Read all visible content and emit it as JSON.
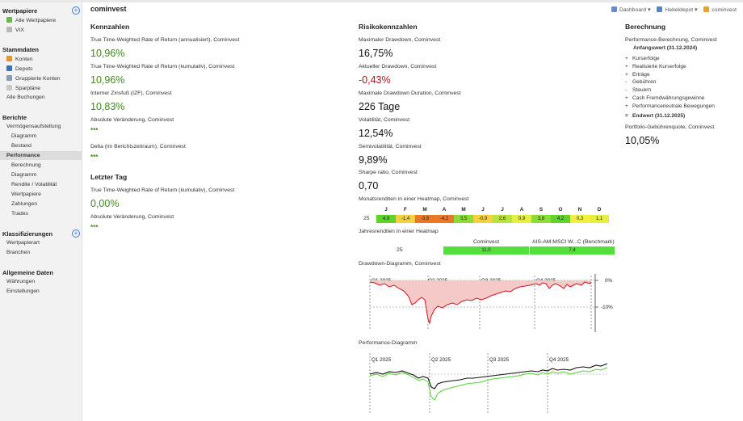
{
  "sidebar": {
    "sections": [
      {
        "title": "Wertpapiere",
        "items": [
          "Alle Wertpapiere",
          "VIX"
        ]
      },
      {
        "title": "Stammdaten",
        "items": [
          "Konten",
          "Depots",
          "Gruppierte Konten",
          "Sparpläne",
          "Alle Buchungen"
        ]
      },
      {
        "title": "Berichte",
        "items": [
          "Vermögensaufstellung",
          "Diagramm",
          "Bestand",
          "Performance",
          "Berechnung",
          "Diagramm",
          "Rendite / Volatilität",
          "Wertpapiere",
          "Zahlungen",
          "Trades"
        ]
      },
      {
        "title": "Klassifizierungen",
        "items": [
          "Wertpapierart",
          "Branchen"
        ]
      },
      {
        "title": "Allgemeine Daten",
        "items": [
          "Währungen",
          "Einstellungen"
        ]
      }
    ],
    "active_item": "Performance"
  },
  "header": {
    "title": "cominvest",
    "crumbs": [
      "Dashboard",
      "Hebeldepot",
      "cominvest"
    ]
  },
  "kennzahlen": {
    "title": "Kennzahlen",
    "items": [
      {
        "label": "True Time-Weighted Rate of Return (annualisiert), Cominvest",
        "value": "10,96%"
      },
      {
        "label": "True Time-Weighted Rate of Return (kumulativ), Cominvest",
        "value": "10,96%"
      },
      {
        "label": "Interner Zinsfuß (IZF), Cominvest",
        "value": "10,83%"
      },
      {
        "label": "Absolute Veränderung, Cominvest",
        "value": "***"
      },
      {
        "label": "Delta (im Berichtszeitraum), Cominvest",
        "value": "***"
      }
    ]
  },
  "letzter_tag": {
    "title": "Letzter Tag",
    "items": [
      {
        "label": "True Time-Weighted Rate of Return (kumulativ), Cominvest",
        "value": "0,00%"
      },
      {
        "label": "Absolute Veränderung, Cominvest",
        "value": "***"
      }
    ]
  },
  "risiko": {
    "title": "Risikokennzahlen",
    "items": [
      {
        "label": "Maximaler Drawdown, Cominvest",
        "value": "16,75%"
      },
      {
        "label": "Aktueller Drawdown, Cominvest",
        "value": "-0,43%"
      },
      {
        "label": "Maximale Drawdown Duration, Cominvest",
        "value": "226 Tage"
      },
      {
        "label": "Volatilität, Cominvest",
        "value": "12,54%"
      },
      {
        "label": "Semivolatilität, Cominvest",
        "value": "9,89%"
      },
      {
        "label": "Sharpe ratio, Cominvest",
        "value": "0,70"
      }
    ]
  },
  "monthly_heatmap": {
    "label": "Monatsrenditen in einer Heatmap, Cominvest",
    "months": [
      "J",
      "F",
      "M",
      "A",
      "M",
      "J",
      "J",
      "A",
      "S",
      "O",
      "N",
      "D"
    ],
    "year": "25",
    "values": [
      "4,9",
      "-1,4",
      "-3,8",
      "-4,2",
      "3,5",
      "-0,9",
      "2,6",
      "0,9",
      "3,8",
      "4,2",
      "0,3",
      "1,1"
    ],
    "colors": [
      "#5fd22b",
      "#f6d13e",
      "#e8792b",
      "#e8792b",
      "#8bdc36",
      "#f6d13e",
      "#b6e43e",
      "#e6ef3d",
      "#8bdc36",
      "#5fd22b",
      "#f3f03d",
      "#e6ef3d"
    ]
  },
  "yearly_heatmap": {
    "label": "Jahresrenditen in einer Heatmap",
    "columns": [
      "Cominvest",
      "AIS-AM.MSCI W...C (Benchmark)"
    ],
    "year": "25",
    "values": [
      "11,0",
      "7,4"
    ],
    "color": "#52e03a"
  },
  "drawdown_chart": {
    "label": "Drawdown-Diagramm, Cominvest",
    "quarters": [
      "Q1 2025",
      "Q2 2025",
      "Q3 2025",
      "Q4 2025"
    ],
    "y_ticks": [
      "0%",
      "-10%"
    ]
  },
  "performance_chart": {
    "label": "Performance-Diagramm",
    "quarters": [
      "Q1 2025",
      "Q2 2025",
      "Q3 2025",
      "Q4 2025"
    ]
  },
  "berechnung": {
    "title": "Berechnung",
    "subtitle": "Performance-Berechnung, Cominvest",
    "start_label": "Anfangswert (31.12.2024)",
    "lines": [
      {
        "sym": "+",
        "text": "Kurserfolge"
      },
      {
        "sym": "+",
        "text": "Realisierte Kurserfolge"
      },
      {
        "sym": "+",
        "text": "Erträge"
      },
      {
        "sym": "-",
        "text": "Gebühren"
      },
      {
        "sym": "-",
        "text": "Steuern"
      },
      {
        "sym": "+",
        "text": "Cash Fremdwährungsgewinne"
      },
      {
        "sym": "+",
        "text": "Performanceneutrale Bewegungen"
      }
    ],
    "end_label": "Endwert (31.12.2025)",
    "end_sym": "=",
    "fee_label": "Portfolio-Gebührenquote, Cominvest",
    "fee_value": "10,05%"
  },
  "colors": {
    "positive": "#3f8a1a",
    "negative": "#b3131b",
    "drawdown_line": "#d0161d",
    "drawdown_fill": "#f6c9c9",
    "perf_main": "#111111",
    "perf_benchmark": "#52d62b"
  }
}
